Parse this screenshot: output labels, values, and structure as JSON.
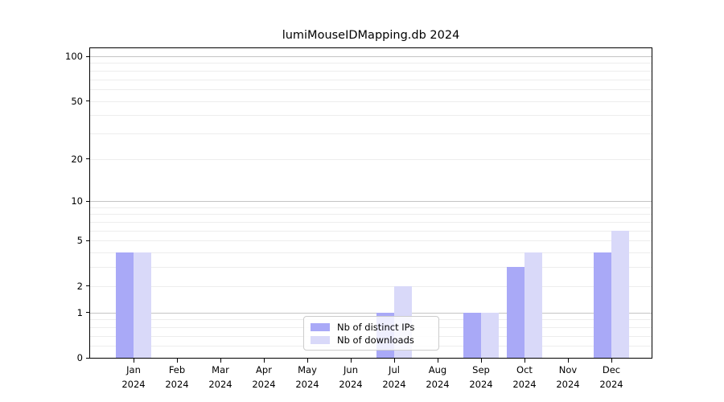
{
  "chart_data": {
    "type": "bar",
    "title": "lumiMouseIDMapping.db 2024",
    "categories": [
      "Jan",
      "Feb",
      "Mar",
      "Apr",
      "May",
      "Jun",
      "Jul",
      "Aug",
      "Sep",
      "Oct",
      "Nov",
      "Dec"
    ],
    "category_year": "2024",
    "series": [
      {
        "name": "Nb of distinct IPs",
        "color": "#a9a9f7",
        "values": [
          4,
          0,
          0,
          0,
          0,
          0,
          1,
          0,
          1,
          3,
          0,
          4
        ]
      },
      {
        "name": "Nb of downloads",
        "color": "#d9d9f9",
        "values": [
          4,
          0,
          0,
          0,
          0,
          0,
          2,
          0,
          1,
          4,
          0,
          6
        ]
      }
    ],
    "xlabel": "",
    "ylabel": "",
    "yscale": "log1p",
    "ylim": [
      0,
      114
    ],
    "ytick_values": [
      0,
      1,
      2,
      5,
      10,
      20,
      50,
      100
    ],
    "ytick_labels": [
      "0",
      "1",
      "2",
      "5",
      "10",
      "20",
      "50",
      "100"
    ],
    "grid": "on",
    "gridline_major_values": [
      1,
      10,
      100
    ],
    "gridline_minor_values": [
      0.2,
      0.4,
      0.6,
      0.8,
      2,
      3,
      4,
      5,
      6,
      7,
      8,
      9,
      20,
      30,
      40,
      50,
      60,
      70,
      80,
      90
    ],
    "legend_position": "lower center",
    "colors": {
      "grid_major": "#c4c4c4",
      "grid_minor": "#ededed",
      "spine": "#000000"
    }
  }
}
